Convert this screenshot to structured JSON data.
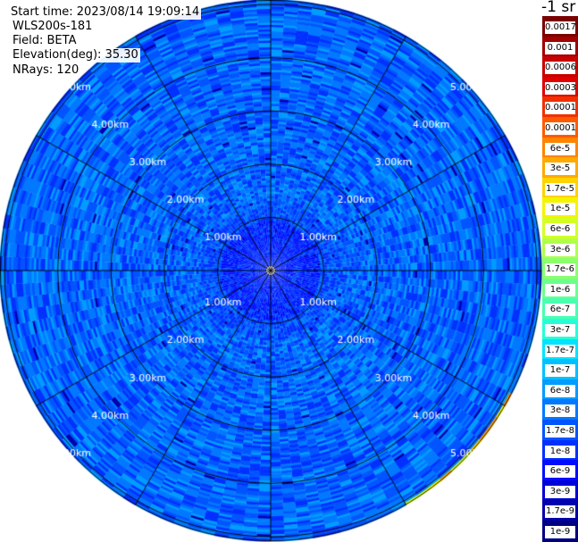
{
  "header": {
    "start_time": "Start time: 2023/08/14 19:09:14",
    "instrument": "WLS200s-181",
    "field": "Field: BETA",
    "elevation": "Elevation(deg): 35.30",
    "nrays": "NRays: 120"
  },
  "colorbar": {
    "title": "-1 sr",
    "labels": [
      "0.0017",
      "0.001",
      "0.0006",
      "0.0003",
      "0.00017",
      "0.0001",
      "6e-5",
      "3e-5",
      "1.7e-5",
      "1e-5",
      "6e-6",
      "3e-6",
      "1.7e-6",
      "1e-6",
      "6e-7",
      "3e-7",
      "1.7e-7",
      "1e-7",
      "6e-8",
      "3e-8",
      "1.7e-8",
      "1e-8",
      "6e-9",
      "3e-9",
      "1.7e-9",
      "1e-9"
    ],
    "colors": [
      "#7a0000",
      "#a00000",
      "#c80000",
      "#e00000",
      "#f03000",
      "#ff5a00",
      "#ff8400",
      "#ffaa00",
      "#ffd200",
      "#f4f400",
      "#d4ff24",
      "#b0ff48",
      "#8cff6c",
      "#6cff8c",
      "#48ffb0",
      "#24ffd8",
      "#00e4ff",
      "#00c0ff",
      "#009cff",
      "#0078ff",
      "#0054ff",
      "#0030ff",
      "#000cff",
      "#0000d8",
      "#0000ac",
      "#000080"
    ]
  },
  "chart_data": {
    "type": "heatmap",
    "projection": "polar PPI",
    "field": "BETA",
    "units": "-1 sr",
    "elevation_deg": 35.3,
    "n_rays": 120,
    "range_ring_labels": [
      "1.00km",
      "2.00km",
      "3.00km",
      "4.00km",
      "5.00km"
    ],
    "range_rings_km": [
      1,
      2,
      3,
      4,
      5
    ],
    "spoke_azimuths_deg": [
      0,
      30,
      60,
      90,
      120,
      150,
      180,
      210,
      240,
      270,
      300,
      330
    ],
    "scale": "log",
    "colorbar_range": [
      1e-09,
      0.0017
    ],
    "background_level": "3e-8",
    "features": [
      {
        "azimuth_deg": [
          340,
          25
        ],
        "range_km": [
          5.6,
          5.9
        ],
        "level": "3e-5"
      },
      {
        "azimuth_deg": [
          118,
          150
        ],
        "range_km": [
          5.0,
          5.9
        ],
        "level": "1.7e-5"
      }
    ]
  }
}
